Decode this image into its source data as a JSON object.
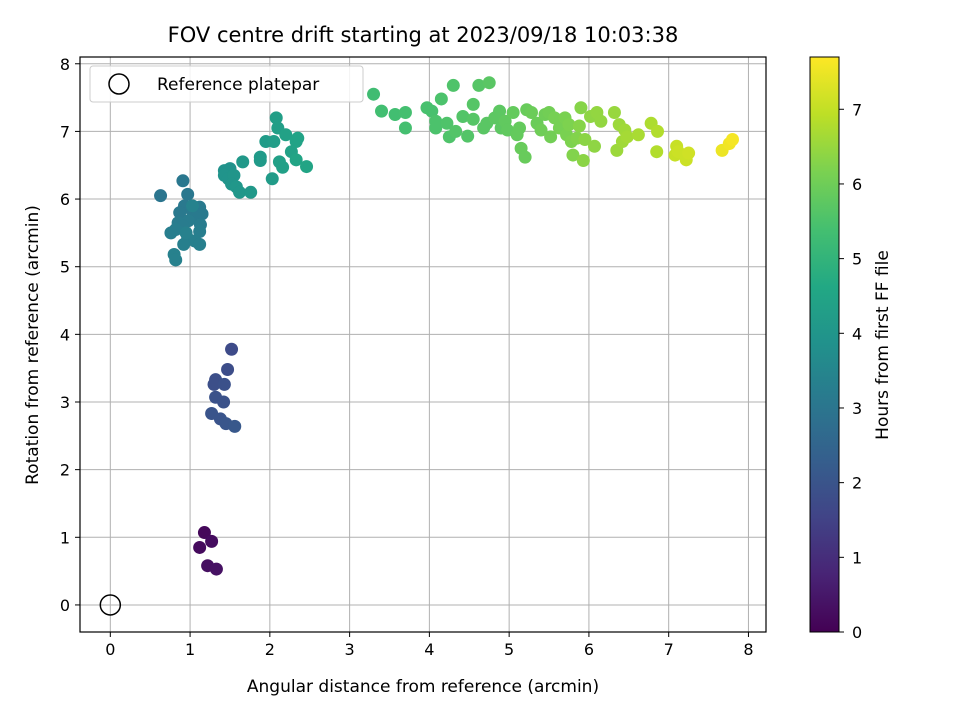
{
  "chart_data": {
    "type": "scatter",
    "title": "FOV centre drift starting at 2023/09/18 10:03:38",
    "xlabel": "Angular distance from reference (arcmin)",
    "ylabel": "Rotation from reference (arcmin)",
    "xlim": [
      -0.38,
      8.22
    ],
    "ylim": [
      -0.4,
      8.1
    ],
    "xticks": [
      0,
      1,
      2,
      3,
      4,
      5,
      6,
      7,
      8
    ],
    "yticks": [
      0,
      1,
      2,
      3,
      4,
      5,
      6,
      7,
      8
    ],
    "grid": true,
    "legend": {
      "placement": "top-left",
      "entries": [
        "Reference platepar"
      ]
    },
    "reference_point": {
      "x": 0,
      "y": 0
    },
    "colorbar": {
      "label": "Hours from first FF file",
      "range": [
        0,
        7.7
      ],
      "ticks": [
        0,
        1,
        2,
        3,
        4,
        5,
        6,
        7
      ],
      "colormap": "viridis"
    },
    "points": [
      {
        "x": 1.18,
        "y": 1.07,
        "h": 0.15
      },
      {
        "x": 1.12,
        "y": 0.85,
        "h": 0.2
      },
      {
        "x": 1.27,
        "y": 0.94,
        "h": 0.25
      },
      {
        "x": 1.22,
        "y": 0.58,
        "h": 0.3
      },
      {
        "x": 1.33,
        "y": 0.53,
        "h": 0.35
      },
      {
        "x": 1.52,
        "y": 3.78,
        "h": 1.75
      },
      {
        "x": 1.47,
        "y": 3.48,
        "h": 1.8
      },
      {
        "x": 1.32,
        "y": 3.33,
        "h": 1.85
      },
      {
        "x": 1.3,
        "y": 3.26,
        "h": 1.85
      },
      {
        "x": 1.43,
        "y": 3.26,
        "h": 1.9
      },
      {
        "x": 1.32,
        "y": 3.07,
        "h": 1.95
      },
      {
        "x": 1.42,
        "y": 3.0,
        "h": 1.95
      },
      {
        "x": 1.27,
        "y": 2.83,
        "h": 2.0
      },
      {
        "x": 1.38,
        "y": 2.75,
        "h": 2.0
      },
      {
        "x": 1.45,
        "y": 2.68,
        "h": 2.05
      },
      {
        "x": 1.56,
        "y": 2.64,
        "h": 2.1
      },
      {
        "x": 0.63,
        "y": 6.05,
        "h": 3.0
      },
      {
        "x": 0.91,
        "y": 6.27,
        "h": 3.05
      },
      {
        "x": 0.97,
        "y": 6.07,
        "h": 3.05
      },
      {
        "x": 0.93,
        "y": 5.9,
        "h": 3.1
      },
      {
        "x": 1.01,
        "y": 5.85,
        "h": 3.1
      },
      {
        "x": 0.87,
        "y": 5.8,
        "h": 3.1
      },
      {
        "x": 1.12,
        "y": 5.88,
        "h": 3.15
      },
      {
        "x": 1.15,
        "y": 5.78,
        "h": 3.15
      },
      {
        "x": 1.07,
        "y": 5.72,
        "h": 3.15
      },
      {
        "x": 0.98,
        "y": 5.68,
        "h": 3.2
      },
      {
        "x": 0.85,
        "y": 5.65,
        "h": 3.2
      },
      {
        "x": 0.91,
        "y": 5.6,
        "h": 3.2
      },
      {
        "x": 1.13,
        "y": 5.62,
        "h": 3.2
      },
      {
        "x": 1.12,
        "y": 5.52,
        "h": 3.25
      },
      {
        "x": 0.82,
        "y": 5.55,
        "h": 3.25
      },
      {
        "x": 0.76,
        "y": 5.5,
        "h": 3.25
      },
      {
        "x": 0.97,
        "y": 5.42,
        "h": 3.3
      },
      {
        "x": 1.06,
        "y": 5.38,
        "h": 3.3
      },
      {
        "x": 0.92,
        "y": 5.33,
        "h": 3.3
      },
      {
        "x": 1.12,
        "y": 5.33,
        "h": 3.3
      },
      {
        "x": 0.8,
        "y": 5.18,
        "h": 3.35
      },
      {
        "x": 0.82,
        "y": 5.1,
        "h": 3.35
      },
      {
        "x": 1.03,
        "y": 5.9,
        "h": 3.4
      },
      {
        "x": 0.95,
        "y": 5.5,
        "h": 3.35
      },
      {
        "x": 1.43,
        "y": 6.42,
        "h": 3.9
      },
      {
        "x": 1.5,
        "y": 6.45,
        "h": 3.9
      },
      {
        "x": 1.43,
        "y": 6.35,
        "h": 3.95
      },
      {
        "x": 1.48,
        "y": 6.3,
        "h": 3.95
      },
      {
        "x": 1.55,
        "y": 6.35,
        "h": 4.0
      },
      {
        "x": 1.52,
        "y": 6.22,
        "h": 4.0
      },
      {
        "x": 1.58,
        "y": 6.18,
        "h": 4.05
      },
      {
        "x": 1.62,
        "y": 6.1,
        "h": 4.05
      },
      {
        "x": 1.66,
        "y": 6.55,
        "h": 4.1
      },
      {
        "x": 1.76,
        "y": 6.1,
        "h": 4.1
      },
      {
        "x": 1.88,
        "y": 6.62,
        "h": 4.15
      },
      {
        "x": 1.88,
        "y": 6.57,
        "h": 4.15
      },
      {
        "x": 1.95,
        "y": 6.85,
        "h": 4.2
      },
      {
        "x": 2.03,
        "y": 6.3,
        "h": 4.2
      },
      {
        "x": 2.05,
        "y": 6.85,
        "h": 4.25
      },
      {
        "x": 2.08,
        "y": 7.2,
        "h": 4.3
      },
      {
        "x": 2.1,
        "y": 7.05,
        "h": 4.3
      },
      {
        "x": 2.12,
        "y": 6.55,
        "h": 4.35
      },
      {
        "x": 2.16,
        "y": 6.47,
        "h": 4.35
      },
      {
        "x": 2.2,
        "y": 6.95,
        "h": 4.4
      },
      {
        "x": 2.27,
        "y": 6.7,
        "h": 4.4
      },
      {
        "x": 2.33,
        "y": 6.85,
        "h": 4.45
      },
      {
        "x": 2.35,
        "y": 6.9,
        "h": 4.45
      },
      {
        "x": 2.33,
        "y": 6.58,
        "h": 4.5
      },
      {
        "x": 2.46,
        "y": 6.48,
        "h": 4.5
      },
      {
        "x": 3.3,
        "y": 7.55,
        "h": 5.3
      },
      {
        "x": 3.4,
        "y": 7.3,
        "h": 5.35
      },
      {
        "x": 3.57,
        "y": 7.25,
        "h": 5.35
      },
      {
        "x": 3.7,
        "y": 7.28,
        "h": 5.4
      },
      {
        "x": 3.7,
        "y": 7.05,
        "h": 5.4
      },
      {
        "x": 3.97,
        "y": 7.35,
        "h": 5.45
      },
      {
        "x": 4.03,
        "y": 7.3,
        "h": 5.45
      },
      {
        "x": 4.08,
        "y": 7.15,
        "h": 5.5
      },
      {
        "x": 4.08,
        "y": 7.05,
        "h": 5.5
      },
      {
        "x": 4.15,
        "y": 7.48,
        "h": 5.5
      },
      {
        "x": 4.22,
        "y": 7.12,
        "h": 5.55
      },
      {
        "x": 4.25,
        "y": 6.92,
        "h": 5.55
      },
      {
        "x": 4.3,
        "y": 7.68,
        "h": 5.55
      },
      {
        "x": 4.33,
        "y": 7.0,
        "h": 5.6
      },
      {
        "x": 4.42,
        "y": 7.22,
        "h": 5.6
      },
      {
        "x": 4.48,
        "y": 6.93,
        "h": 5.6
      },
      {
        "x": 4.55,
        "y": 7.4,
        "h": 5.65
      },
      {
        "x": 4.55,
        "y": 7.18,
        "h": 5.65
      },
      {
        "x": 4.62,
        "y": 7.68,
        "h": 5.65
      },
      {
        "x": 4.68,
        "y": 7.05,
        "h": 5.7
      },
      {
        "x": 4.72,
        "y": 7.12,
        "h": 5.7
      },
      {
        "x": 4.75,
        "y": 7.72,
        "h": 5.7
      },
      {
        "x": 4.82,
        "y": 7.2,
        "h": 5.75
      },
      {
        "x": 4.88,
        "y": 7.3,
        "h": 5.75
      },
      {
        "x": 4.9,
        "y": 7.05,
        "h": 5.75
      },
      {
        "x": 4.95,
        "y": 7.15,
        "h": 5.8
      },
      {
        "x": 4.98,
        "y": 7.02,
        "h": 5.8
      },
      {
        "x": 5.05,
        "y": 7.28,
        "h": 5.85
      },
      {
        "x": 5.1,
        "y": 6.95,
        "h": 5.85
      },
      {
        "x": 5.13,
        "y": 7.05,
        "h": 5.85
      },
      {
        "x": 5.15,
        "y": 6.75,
        "h": 5.9
      },
      {
        "x": 5.2,
        "y": 6.62,
        "h": 5.9
      },
      {
        "x": 5.22,
        "y": 7.32,
        "h": 5.9
      },
      {
        "x": 5.28,
        "y": 7.28,
        "h": 5.95
      },
      {
        "x": 5.35,
        "y": 7.12,
        "h": 5.95
      },
      {
        "x": 5.4,
        "y": 7.02,
        "h": 6.0
      },
      {
        "x": 5.45,
        "y": 7.25,
        "h": 6.0
      },
      {
        "x": 5.5,
        "y": 7.28,
        "h": 6.05
      },
      {
        "x": 5.52,
        "y": 6.92,
        "h": 6.05
      },
      {
        "x": 5.57,
        "y": 7.2,
        "h": 6.1
      },
      {
        "x": 5.63,
        "y": 7.05,
        "h": 6.1
      },
      {
        "x": 5.7,
        "y": 7.2,
        "h": 6.15
      },
      {
        "x": 5.72,
        "y": 6.95,
        "h": 6.15
      },
      {
        "x": 5.75,
        "y": 7.1,
        "h": 6.2
      },
      {
        "x": 5.78,
        "y": 6.85,
        "h": 6.2
      },
      {
        "x": 5.8,
        "y": 6.65,
        "h": 6.25
      },
      {
        "x": 5.85,
        "y": 6.9,
        "h": 6.25
      },
      {
        "x": 5.88,
        "y": 7.08,
        "h": 6.3
      },
      {
        "x": 5.9,
        "y": 7.35,
        "h": 6.3
      },
      {
        "x": 5.93,
        "y": 6.57,
        "h": 6.35
      },
      {
        "x": 5.95,
        "y": 6.88,
        "h": 6.35
      },
      {
        "x": 6.02,
        "y": 7.22,
        "h": 6.4
      },
      {
        "x": 6.07,
        "y": 6.78,
        "h": 6.4
      },
      {
        "x": 6.1,
        "y": 7.28,
        "h": 6.45
      },
      {
        "x": 6.15,
        "y": 7.15,
        "h": 6.45
      },
      {
        "x": 6.32,
        "y": 7.28,
        "h": 6.5
      },
      {
        "x": 6.35,
        "y": 6.72,
        "h": 6.55
      },
      {
        "x": 6.38,
        "y": 7.1,
        "h": 6.55
      },
      {
        "x": 6.42,
        "y": 6.85,
        "h": 6.6
      },
      {
        "x": 6.45,
        "y": 7.02,
        "h": 6.6
      },
      {
        "x": 6.48,
        "y": 6.92,
        "h": 6.65
      },
      {
        "x": 6.62,
        "y": 6.95,
        "h": 6.7
      },
      {
        "x": 6.78,
        "y": 7.12,
        "h": 6.75
      },
      {
        "x": 6.85,
        "y": 6.7,
        "h": 6.8
      },
      {
        "x": 6.86,
        "y": 7.0,
        "h": 6.8
      },
      {
        "x": 7.08,
        "y": 6.65,
        "h": 7.05
      },
      {
        "x": 7.1,
        "y": 6.78,
        "h": 7.05
      },
      {
        "x": 7.12,
        "y": 6.7,
        "h": 7.1
      },
      {
        "x": 7.22,
        "y": 6.58,
        "h": 7.1
      },
      {
        "x": 7.25,
        "y": 6.68,
        "h": 7.15
      },
      {
        "x": 7.67,
        "y": 6.72,
        "h": 7.5
      },
      {
        "x": 7.76,
        "y": 6.82,
        "h": 7.55
      },
      {
        "x": 7.8,
        "y": 6.88,
        "h": 7.6
      }
    ]
  }
}
